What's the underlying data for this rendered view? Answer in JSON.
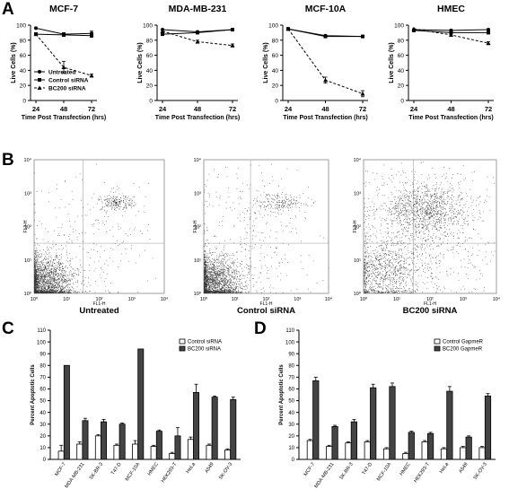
{
  "panel_letters": [
    "A",
    "B",
    "C",
    "D"
  ],
  "chart_data": [
    {
      "panel": "A",
      "type": "line",
      "title": "MCF-7",
      "xlabel": "Time  Post Transfection (hrs)",
      "ylabel": "Live Cells (%)",
      "ylim": [
        0,
        100
      ],
      "yticks": [
        0,
        20,
        40,
        60,
        80,
        100
      ],
      "x": [
        24,
        48,
        72
      ],
      "legend": "bottom-left",
      "series": [
        {
          "name": "Untreated",
          "values": [
            96,
            88,
            89
          ],
          "errors": [
            0,
            2,
            3
          ]
        },
        {
          "name": "Control siRNA",
          "values": [
            88,
            87,
            86
          ],
          "errors": [
            0,
            2,
            2
          ]
        },
        {
          "name": "BC200 siRNA",
          "values": [
            88,
            44,
            33
          ],
          "errors": [
            0,
            8,
            2
          ]
        }
      ]
    },
    {
      "panel": "A",
      "type": "line",
      "title": "MDA-MB-231",
      "xlabel": "Time  Post Transfection (hrs)",
      "ylabel": "Live Cells (%)",
      "ylim": [
        0,
        100
      ],
      "yticks": [
        0,
        20,
        40,
        60,
        80,
        100
      ],
      "x": [
        24,
        48,
        72
      ],
      "series": [
        {
          "name": "Untreated",
          "values": [
            94,
            91,
            94
          ],
          "errors": [
            0,
            1,
            1
          ]
        },
        {
          "name": "Control siRNA",
          "values": [
            88,
            90,
            94
          ],
          "errors": [
            0,
            1,
            1
          ]
        },
        {
          "name": "BC200 siRNA",
          "values": [
            92,
            78,
            73
          ],
          "errors": [
            0,
            2,
            2
          ]
        }
      ]
    },
    {
      "panel": "A",
      "type": "line",
      "title": "MCF-10A",
      "xlabel": "Time  Post Transfection (hrs)",
      "ylabel": "Live Cells (%)",
      "ylim": [
        0,
        100
      ],
      "yticks": [
        0,
        20,
        40,
        60,
        80,
        100
      ],
      "x": [
        24,
        48,
        72
      ],
      "series": [
        {
          "name": "Untreated",
          "values": [
            95,
            86,
            85
          ],
          "errors": [
            0,
            1,
            1
          ]
        },
        {
          "name": "Control siRNA",
          "values": [
            95,
            85,
            85
          ],
          "errors": [
            0,
            1,
            1
          ]
        },
        {
          "name": "BC200 siRNA",
          "values": [
            95,
            27,
            9
          ],
          "errors": [
            0,
            4,
            4
          ]
        }
      ]
    },
    {
      "panel": "A",
      "type": "line",
      "title": "HMEC",
      "xlabel": "Time  Post Transfection (hrs)",
      "ylabel": "Live Cells (%)",
      "ylim": [
        0,
        100
      ],
      "yticks": [
        0,
        20,
        40,
        60,
        80,
        100
      ],
      "x": [
        24,
        48,
        72
      ],
      "series": [
        {
          "name": "Untreated",
          "values": [
            94,
            93,
            94
          ],
          "errors": [
            0,
            1,
            1
          ]
        },
        {
          "name": "Control siRNA",
          "values": [
            93,
            90,
            90
          ],
          "errors": [
            0,
            1,
            1
          ]
        },
        {
          "name": "BC200 siRNA",
          "values": [
            95,
            87,
            76
          ],
          "errors": [
            0,
            2,
            2
          ]
        }
      ]
    },
    {
      "panel": "B",
      "type": "scatter",
      "title": "Untreated",
      "xlabel": "FL1-H",
      "ylabel": "FL3-H",
      "scale": "log",
      "xlim": [
        1,
        10000
      ],
      "ylim": [
        1,
        10000
      ],
      "tick_labels": [
        "10⁰",
        "10¹",
        "10²",
        "10³",
        "10⁴"
      ],
      "populations": [
        {
          "cx": 0.3,
          "cy": 0.3,
          "sx": 0.45,
          "sy": 0.4,
          "fraction": 0.82
        },
        {
          "cx": 2.5,
          "cy": 2.7,
          "sx": 0.25,
          "sy": 0.12,
          "fraction": 0.08
        },
        {
          "cx": 1.6,
          "cy": 1.6,
          "sx": 1.0,
          "sy": 1.0,
          "fraction": 0.1
        }
      ]
    },
    {
      "panel": "B",
      "type": "scatter",
      "title": "Control siRNA",
      "xlabel": "FL1-H",
      "ylabel": "FL3-H",
      "scale": "log",
      "xlim": [
        1,
        10000
      ],
      "ylim": [
        1,
        10000
      ],
      "tick_labels": [
        "10⁰",
        "10¹",
        "10²",
        "10³",
        "10⁴"
      ],
      "populations": [
        {
          "cx": 0.3,
          "cy": 0.3,
          "sx": 0.45,
          "sy": 0.4,
          "fraction": 0.8
        },
        {
          "cx": 2.4,
          "cy": 2.7,
          "sx": 0.4,
          "sy": 0.15,
          "fraction": 0.08
        },
        {
          "cx": 1.6,
          "cy": 1.6,
          "sx": 1.0,
          "sy": 1.0,
          "fraction": 0.12
        }
      ]
    },
    {
      "panel": "B",
      "type": "scatter",
      "title": "BC200 siRNA",
      "xlabel": "FL1-H",
      "ylabel": "FL3-H",
      "scale": "log",
      "xlim": [
        1,
        10000
      ],
      "ylim": [
        1,
        10000
      ],
      "tick_labels": [
        "10⁰",
        "10¹",
        "10²",
        "10³",
        "10⁴"
      ],
      "populations": [
        {
          "cx": 0.6,
          "cy": 0.6,
          "sx": 0.55,
          "sy": 0.5,
          "fraction": 0.35
        },
        {
          "cx": 1.8,
          "cy": 2.5,
          "sx": 0.6,
          "sy": 0.4,
          "fraction": 0.35
        },
        {
          "cx": 1.8,
          "cy": 1.8,
          "sx": 1.0,
          "sy": 1.0,
          "fraction": 0.3
        }
      ]
    },
    {
      "panel": "C",
      "type": "bar",
      "ylabel": "Percent  Apoptotic  Cells",
      "ylim": [
        0,
        110
      ],
      "yticks": [
        0,
        10,
        20,
        30,
        40,
        50,
        60,
        70,
        80,
        90,
        100,
        110
      ],
      "legend": "top-right",
      "categories": [
        "MCF-7",
        "MDA-MB-231",
        "SK-BR-3",
        "T47-D",
        "MCF-10A",
        "HMEC",
        "HEK293-T",
        "HeLa",
        "A549",
        "SK-OV-3"
      ],
      "series": [
        {
          "name": "Control siRNA",
          "color": "#ffffff",
          "values": [
            7,
            13,
            20,
            12,
            13,
            11,
            5,
            17,
            12,
            8
          ],
          "errors": [
            5,
            2,
            1,
            1,
            3,
            1,
            1,
            2,
            1,
            1
          ]
        },
        {
          "name": "BC200 siRNA",
          "color": "#444444",
          "values": [
            80,
            33,
            32,
            30,
            94,
            24,
            20,
            57,
            53,
            51
          ],
          "errors": [
            0,
            2,
            2,
            1,
            0,
            1,
            7,
            7,
            1,
            2
          ]
        }
      ]
    },
    {
      "panel": "D",
      "type": "bar",
      "ylabel": "Percent  Apoptotic  Cells",
      "ylim": [
        0,
        110
      ],
      "yticks": [
        0,
        10,
        20,
        30,
        40,
        50,
        60,
        70,
        80,
        90,
        100,
        110
      ],
      "legend": "top-right",
      "categories": [
        "MCF-7",
        "MDA-MB-231",
        "SK-BR-3",
        "T47-D",
        "MCF-10A",
        "HMEC",
        "HEK293-T",
        "HeLa",
        "A549",
        "SK-OV-3"
      ],
      "series": [
        {
          "name": "Control GapmeR",
          "color": "#ffffff",
          "values": [
            16,
            11,
            14,
            15,
            9,
            5,
            15,
            9,
            10,
            10
          ],
          "errors": [
            1,
            1,
            1,
            1,
            1,
            1,
            1,
            1,
            1,
            1
          ]
        },
        {
          "name": "BC200 GapmeR",
          "color": "#444444",
          "values": [
            67,
            28,
            32,
            61,
            62,
            23,
            22,
            58,
            19,
            54
          ],
          "errors": [
            3,
            1,
            2,
            3,
            3,
            1,
            1,
            4,
            1,
            2
          ]
        }
      ]
    }
  ]
}
